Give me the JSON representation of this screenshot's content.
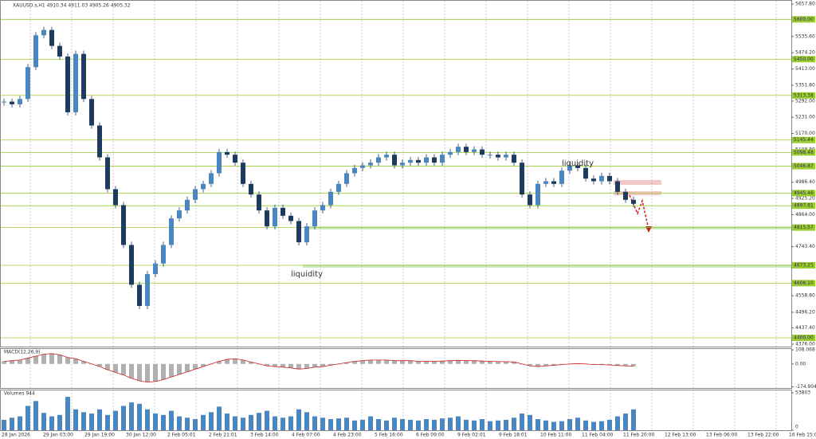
{
  "chart_data": {
    "type": "candlestick",
    "title": "XAUUSD.s,H1  4910.34 4911.03 4905.26 4905.32",
    "annotations": [
      "liquidity",
      "liquidity"
    ],
    "closes": [
      5290,
      5280,
      5300,
      5420,
      5540,
      5560,
      5500,
      5460,
      5250,
      5470,
      5300,
      5200,
      5080,
      4960,
      4900,
      4750,
      4600,
      4520,
      4640,
      4680,
      4750,
      4850,
      4880,
      4920,
      4960,
      4980,
      5020,
      5100,
      5090,
      5060,
      4980,
      4940,
      4880,
      4820,
      4890,
      4860,
      4840,
      4760,
      4820,
      4880,
      4900,
      4950,
      4980,
      5020,
      5040,
      5050,
      5060,
      5080,
      5090,
      5050,
      5060,
      5070,
      5060,
      5080,
      5060,
      5090,
      5100,
      5120,
      5100,
      5110,
      5090,
      5090,
      5080,
      5090,
      5060,
      4940,
      4900,
      4980,
      4990,
      4980,
      5030,
      5050,
      5040,
      5000,
      4990,
      5010,
      4990,
      4950,
      4920,
      4905
    ],
    "ylim": [
      4367,
      5673
    ],
    "yticks": [
      {
        "value": 5657.8,
        "label": "5657.80"
      },
      {
        "value": 5535.6,
        "label": "5535.60"
      },
      {
        "value": 5474.2,
        "label": "5474.20"
      },
      {
        "value": 5413,
        "label": "5413.00"
      },
      {
        "value": 5351.8,
        "label": "5351.80"
      },
      {
        "value": 5292,
        "label": "5292.00"
      },
      {
        "value": 5231,
        "label": "5231.00"
      },
      {
        "value": 5170,
        "label": "5170.00"
      },
      {
        "value": 5108.8,
        "label": "5108.80"
      },
      {
        "value": 4986.4,
        "label": "4986.40"
      },
      {
        "value": 4925.2,
        "label": "4925.20"
      },
      {
        "value": 4864,
        "label": "4864.00"
      },
      {
        "value": 4743.4,
        "label": "4743.40"
      },
      {
        "value": 4558.8,
        "label": "4558.80"
      },
      {
        "value": 4496.2,
        "label": "4496.20"
      },
      {
        "value": 4437.4,
        "label": "4437.40"
      },
      {
        "value": 4376,
        "label": "4376.00"
      }
    ],
    "levels": [
      {
        "value": 5600,
        "label": "5600.00"
      },
      {
        "value": 5450,
        "label": "5450.00"
      },
      {
        "value": 5313.38,
        "label": "5313.38"
      },
      {
        "value": 5145.44,
        "label": "5145.44"
      },
      {
        "value": 5098.48,
        "label": "5098.48"
      },
      {
        "value": 5046.87,
        "label": "5046.87"
      },
      {
        "value": 4945.46,
        "label": "4945.46"
      },
      {
        "value": 4897.81,
        "label": "4897.81"
      },
      {
        "value": 4815.57,
        "label": "4815.57"
      },
      {
        "value": 4673.25,
        "label": "4673.25"
      },
      {
        "value": 4606.1,
        "label": "4606.10"
      },
      {
        "value": 4400,
        "label": "4400.00"
      }
    ],
    "x_labels": [
      "28 Jan 2026",
      "29 Jan 03:00",
      "29 Jan 19:00",
      "30 Jan 12:00",
      "2 Feb 05:01",
      "2 Feb 21:01",
      "3 Feb 14:00",
      "4 Feb 07:00",
      "4 Feb 23:00",
      "5 Feb 16:00",
      "6 Feb 09:00",
      "9 Feb 02:01",
      "9 Feb 18:01",
      "10 Feb 11:00",
      "11 Feb 04:00",
      "11 Feb 20:00",
      "12 Feb 13:00",
      "13 Feb 06:00",
      "13 Feb 22:00",
      "16 Feb 15:01"
    ],
    "macd_title": "MACD(12,26,9)",
    "macd": [
      20,
      25,
      30,
      45,
      60,
      75,
      80,
      70,
      50,
      40,
      20,
      0,
      -20,
      -45,
      -65,
      -85,
      -110,
      -130,
      -140,
      -135,
      -120,
      -100,
      -80,
      -60,
      -40,
      -20,
      0,
      20,
      35,
      40,
      30,
      15,
      0,
      -15,
      -20,
      -25,
      -30,
      -40,
      -35,
      -25,
      -20,
      -10,
      0,
      10,
      20,
      25,
      30,
      30,
      30,
      25,
      25,
      25,
      20,
      20,
      20,
      22,
      25,
      28,
      25,
      25,
      22,
      20,
      18,
      18,
      15,
      0,
      -15,
      -20,
      -15,
      -10,
      -5,
      0,
      2,
      0,
      -5,
      -5,
      -8,
      -12,
      -15,
      -18
    ],
    "macd_ylim": [
      -185,
      115
    ],
    "macd_yticks": [
      108.068,
      {
        "value": 0,
        "label": "0.00"
      },
      -174.904
    ],
    "volume_title": "Volumes 944",
    "volumes": [
      15000,
      18000,
      20000,
      35000,
      42000,
      25000,
      20000,
      22000,
      48000,
      30000,
      26000,
      24000,
      30000,
      22000,
      28000,
      35000,
      40000,
      38000,
      30000,
      24000,
      22000,
      28000,
      20000,
      18000,
      16000,
      22000,
      26000,
      34000,
      24000,
      20000,
      18000,
      22000,
      25000,
      28000,
      20000,
      18000,
      20000,
      30000,
      26000,
      20000,
      18000,
      16000,
      17000,
      18000,
      14000,
      15000,
      20000,
      16000,
      14000,
      18000,
      16000,
      15000,
      14000,
      16000,
      15000,
      17000,
      18000,
      20000,
      15000,
      14000,
      16000,
      13000,
      14000,
      15000,
      18000,
      24000,
      22000,
      16000,
      14000,
      12000,
      13000,
      16000,
      18000,
      14000,
      12000,
      13000,
      15000,
      20000,
      24000,
      30000
    ],
    "volume_ylim": [
      0,
      55000
    ],
    "volume_yticks": [
      53803,
      0
    ]
  }
}
